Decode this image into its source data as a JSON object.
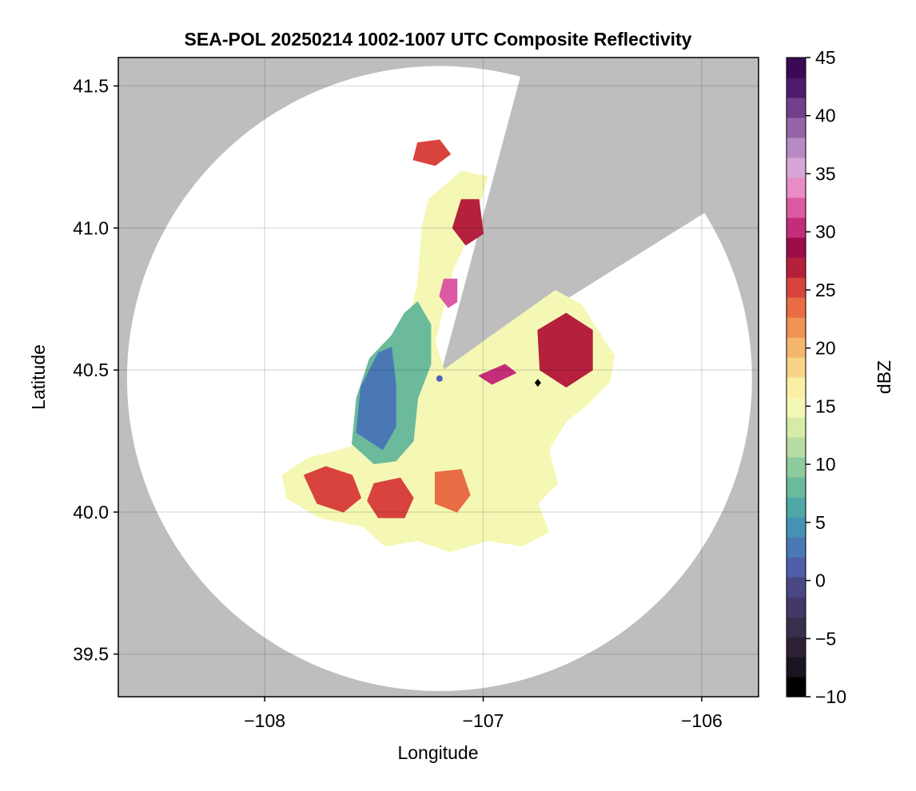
{
  "chart_data": {
    "type": "heatmap",
    "title": "SEA-POL 20250214 1002-1007 UTC Composite Reflectivity",
    "xlabel": "Longitude",
    "ylabel": "Latitude",
    "xlim": [
      -108.67,
      -105.74
    ],
    "ylim": [
      39.35,
      41.6
    ],
    "x_ticks": [
      -108,
      -107,
      -106
    ],
    "y_ticks": [
      39.5,
      40.0,
      40.5,
      41.0,
      41.5
    ],
    "x_tick_labels": [
      "−108",
      "−107",
      "−106"
    ],
    "y_tick_labels": [
      "39.5",
      "40.0",
      "40.5",
      "41.0",
      "41.5"
    ],
    "grid": true,
    "background_color": "#bebebe",
    "coverage_color": "#ffffff",
    "radar_site": {
      "lon": -107.2,
      "lat": 40.47,
      "color": "#4f63b8"
    },
    "marker": {
      "lon": -106.75,
      "lat": 40.455,
      "shape": "diamond",
      "color": "#000000"
    },
    "coverage": {
      "center_lon": -107.2,
      "center_lat": 40.47,
      "radius_lon_deg": 1.43,
      "radius_lat_deg": 1.1,
      "blocked_wedges": [
        {
          "from_deg": 15,
          "to_deg": 58
        }
      ]
    },
    "colorbar": {
      "label": "dBZ",
      "range": [
        -10,
        45
      ],
      "ticks": [
        -10,
        -5,
        0,
        5,
        10,
        15,
        20,
        25,
        30,
        35,
        40,
        45
      ],
      "tick_labels": [
        "−10",
        "−5",
        "0",
        "5",
        "10",
        "15",
        "20",
        "25",
        "30",
        "35",
        "40",
        "45"
      ],
      "colors": [
        "#000000",
        "#1a1320",
        "#2b2133",
        "#3a2e4d",
        "#45376a",
        "#4a4785",
        "#4f5ea8",
        "#4978b5",
        "#4592b4",
        "#4fa7a8",
        "#6bba9c",
        "#8fcc9d",
        "#b5dca1",
        "#d6eba7",
        "#f4f8b4",
        "#fbefa6",
        "#f8d488",
        "#f4b56c",
        "#f09355",
        "#e86d45",
        "#d8433e",
        "#b5203c",
        "#9b0e47",
        "#c42d7a",
        "#dc5aa4",
        "#e98bc5",
        "#d7a6d6",
        "#b68ac4",
        "#9564a8",
        "#71408c",
        "#4e1a6c",
        "#3a0a55"
      ]
    },
    "echo_regions": [
      {
        "name": "main-light",
        "dbz": 15,
        "polygon": [
          [
            -107.9,
            40.05
          ],
          [
            -107.75,
            39.98
          ],
          [
            -107.55,
            39.95
          ],
          [
            -107.45,
            39.88
          ],
          [
            -107.3,
            39.9
          ],
          [
            -107.15,
            39.86
          ],
          [
            -106.98,
            39.9
          ],
          [
            -106.82,
            39.88
          ],
          [
            -106.7,
            39.93
          ],
          [
            -106.75,
            40.03
          ],
          [
            -106.66,
            40.1
          ],
          [
            -106.7,
            40.22
          ],
          [
            -106.62,
            40.32
          ],
          [
            -106.52,
            40.38
          ],
          [
            -106.42,
            40.46
          ],
          [
            -106.4,
            40.55
          ],
          [
            -106.46,
            40.62
          ],
          [
            -106.55,
            40.73
          ],
          [
            -106.67,
            40.78
          ],
          [
            -107.0,
            40.6
          ],
          [
            -107.18,
            40.5
          ],
          [
            -107.22,
            40.6
          ],
          [
            -107.14,
            40.85
          ],
          [
            -107.05,
            41.0
          ],
          [
            -106.98,
            41.18
          ],
          [
            -107.1,
            41.2
          ],
          [
            -107.25,
            41.1
          ],
          [
            -107.28,
            41.0
          ],
          [
            -107.3,
            40.8
          ],
          [
            -107.35,
            40.65
          ],
          [
            -107.5,
            40.52
          ],
          [
            -107.55,
            40.35
          ],
          [
            -107.6,
            40.23
          ],
          [
            -107.8,
            40.19
          ],
          [
            -107.92,
            40.13
          ]
        ]
      },
      {
        "name": "west-cool",
        "dbz": 8,
        "polygon": [
          [
            -107.6,
            40.24
          ],
          [
            -107.58,
            40.4
          ],
          [
            -107.52,
            40.54
          ],
          [
            -107.42,
            40.62
          ],
          [
            -107.36,
            40.7
          ],
          [
            -107.3,
            40.74
          ],
          [
            -107.24,
            40.66
          ],
          [
            -107.24,
            40.52
          ],
          [
            -107.3,
            40.4
          ],
          [
            -107.32,
            40.25
          ],
          [
            -107.4,
            40.18
          ],
          [
            -107.5,
            40.17
          ]
        ]
      },
      {
        "name": "west-blue",
        "dbz": 3,
        "polygon": [
          [
            -107.58,
            40.28
          ],
          [
            -107.56,
            40.44
          ],
          [
            -107.48,
            40.56
          ],
          [
            -107.42,
            40.58
          ],
          [
            -107.4,
            40.45
          ],
          [
            -107.4,
            40.3
          ],
          [
            -107.46,
            40.22
          ]
        ]
      },
      {
        "name": "sw-cell",
        "dbz": 25,
        "polygon": [
          [
            -107.82,
            40.13
          ],
          [
            -107.72,
            40.16
          ],
          [
            -107.6,
            40.13
          ],
          [
            -107.56,
            40.05
          ],
          [
            -107.64,
            40.0
          ],
          [
            -107.76,
            40.03
          ]
        ]
      },
      {
        "name": "s-cell-1",
        "dbz": 25,
        "polygon": [
          [
            -107.5,
            40.1
          ],
          [
            -107.38,
            40.12
          ],
          [
            -107.32,
            40.05
          ],
          [
            -107.36,
            39.98
          ],
          [
            -107.48,
            39.98
          ],
          [
            -107.53,
            40.04
          ]
        ]
      },
      {
        "name": "s-cell-2",
        "dbz": 23,
        "polygon": [
          [
            -107.22,
            40.14
          ],
          [
            -107.1,
            40.15
          ],
          [
            -107.06,
            40.06
          ],
          [
            -107.12,
            40.0
          ],
          [
            -107.22,
            40.03
          ]
        ]
      },
      {
        "name": "ne-cell",
        "dbz": 27,
        "polygon": [
          [
            -106.75,
            40.64
          ],
          [
            -106.62,
            40.7
          ],
          [
            -106.5,
            40.64
          ],
          [
            -106.5,
            40.5
          ],
          [
            -106.62,
            40.44
          ],
          [
            -106.74,
            40.5
          ]
        ]
      },
      {
        "name": "n-cell",
        "dbz": 27,
        "polygon": [
          [
            -107.1,
            41.1
          ],
          [
            -107.02,
            41.1
          ],
          [
            -107.0,
            40.98
          ],
          [
            -107.08,
            40.94
          ],
          [
            -107.14,
            41.0
          ]
        ]
      },
      {
        "name": "n-strong",
        "dbz": 32,
        "polygon": [
          [
            -107.18,
            40.82
          ],
          [
            -107.12,
            40.82
          ],
          [
            -107.12,
            40.74
          ],
          [
            -107.16,
            40.72
          ],
          [
            -107.2,
            40.76
          ]
        ]
      },
      {
        "name": "far-n-cell",
        "dbz": 25,
        "polygon": [
          [
            -107.3,
            41.3
          ],
          [
            -107.2,
            41.31
          ],
          [
            -107.15,
            41.26
          ],
          [
            -107.22,
            41.22
          ],
          [
            -107.32,
            41.24
          ]
        ]
      },
      {
        "name": "ne-streak",
        "dbz": 30,
        "polygon": [
          [
            -107.02,
            40.48
          ],
          [
            -106.9,
            40.52
          ],
          [
            -106.85,
            40.49
          ],
          [
            -106.96,
            40.45
          ]
        ]
      }
    ]
  }
}
